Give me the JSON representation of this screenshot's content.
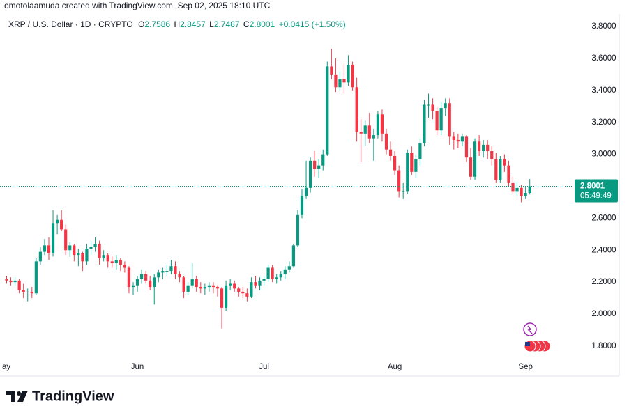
{
  "chart_data": {
    "type": "candlestick",
    "attribution": "omotolaamuda created with TradingView.com, Sep 02, 2025 18:10 UTC",
    "title": "XRP / U.S. Dollar · 1D · CRYPTO",
    "ohlc_labels": [
      "O",
      "H",
      "L",
      "C"
    ],
    "change_label": "+0.0415 (+1.50%)",
    "countdown": "05:49:49",
    "brand": "TradingView",
    "up_color": "#089981",
    "down_color": "#f23645",
    "grid": false,
    "ylim": [
      1.73,
      3.857
    ],
    "yticks": [
      {
        "value": 1.8,
        "label": "1.8000"
      },
      {
        "value": 2,
        "label": "2.0000"
      },
      {
        "value": 2.2,
        "label": "2.2000"
      },
      {
        "value": 2.4,
        "label": "2.4000"
      },
      {
        "value": 2.6,
        "label": "2.6000"
      },
      {
        "value": 2.8,
        "label": "2.8000"
      },
      {
        "value": 3,
        "label": "3.0000"
      },
      {
        "value": 3.2,
        "label": "3.2000"
      },
      {
        "value": 3.4,
        "label": "3.4000"
      },
      {
        "value": 3.6,
        "label": "3.6000"
      },
      {
        "value": 3.8,
        "label": "3.8000"
      }
    ],
    "categories": [
      "ay",
      null,
      null,
      null,
      null,
      null,
      null,
      null,
      null,
      null,
      null,
      null,
      null,
      null,
      null,
      null,
      null,
      null,
      null,
      null,
      null,
      null,
      null,
      null,
      null,
      null,
      null,
      null,
      null,
      null,
      null,
      "Jun",
      null,
      null,
      null,
      null,
      null,
      null,
      null,
      null,
      null,
      null,
      null,
      null,
      null,
      null,
      null,
      null,
      null,
      null,
      null,
      null,
      null,
      null,
      null,
      null,
      null,
      null,
      null,
      null,
      null,
      "Jul",
      null,
      null,
      null,
      null,
      null,
      null,
      null,
      null,
      null,
      null,
      null,
      null,
      null,
      null,
      null,
      null,
      null,
      null,
      null,
      null,
      null,
      null,
      null,
      null,
      null,
      null,
      null,
      null,
      null,
      null,
      "Aug",
      null,
      null,
      null,
      null,
      null,
      null,
      null,
      null,
      null,
      null,
      null,
      null,
      null,
      null,
      null,
      null,
      null,
      null,
      null,
      null,
      null,
      null,
      null,
      null,
      null,
      null,
      null,
      null,
      null,
      null,
      "Sep",
      null
    ],
    "ohlc": [
      [
        2.22,
        2.24,
        2.19,
        2.21
      ],
      [
        2.21,
        2.23,
        2.18,
        2.2
      ],
      [
        2.2,
        2.23,
        2.18,
        2.21
      ],
      [
        2.21,
        2.22,
        2.13,
        2.15
      ],
      [
        2.15,
        2.19,
        2.1,
        2.14
      ],
      [
        2.14,
        2.16,
        2.08,
        2.14
      ],
      [
        2.14,
        2.17,
        2.1,
        2.13
      ],
      [
        2.13,
        2.35,
        2.12,
        2.33
      ],
      [
        2.33,
        2.42,
        2.31,
        2.39
      ],
      [
        2.39,
        2.47,
        2.37,
        2.43
      ],
      [
        2.43,
        2.48,
        2.34,
        2.38
      ],
      [
        2.38,
        2.65,
        2.36,
        2.57
      ],
      [
        2.57,
        2.62,
        2.5,
        2.59
      ],
      [
        2.59,
        2.65,
        2.52,
        2.53
      ],
      [
        2.53,
        2.56,
        2.37,
        2.4
      ],
      [
        2.4,
        2.45,
        2.36,
        2.43
      ],
      [
        2.43,
        2.44,
        2.33,
        2.37
      ],
      [
        2.37,
        2.41,
        2.3,
        2.38
      ],
      [
        2.38,
        2.39,
        2.27,
        2.33
      ],
      [
        2.33,
        2.44,
        2.31,
        2.41
      ],
      [
        2.41,
        2.46,
        2.37,
        2.42
      ],
      [
        2.42,
        2.48,
        2.39,
        2.44
      ],
      [
        2.44,
        2.46,
        2.31,
        2.35
      ],
      [
        2.35,
        2.4,
        2.33,
        2.37
      ],
      [
        2.37,
        2.38,
        2.29,
        2.33
      ],
      [
        2.33,
        2.36,
        2.29,
        2.32
      ],
      [
        2.32,
        2.37,
        2.28,
        2.34
      ],
      [
        2.34,
        2.35,
        2.27,
        2.31
      ],
      [
        2.31,
        2.33,
        2.26,
        2.29
      ],
      [
        2.29,
        2.3,
        2.13,
        2.17
      ],
      [
        2.17,
        2.2,
        2.12,
        2.18
      ],
      [
        2.18,
        2.24,
        2.14,
        2.22
      ],
      [
        2.22,
        2.28,
        2.19,
        2.25
      ],
      [
        2.25,
        2.27,
        2.19,
        2.21
      ],
      [
        2.21,
        2.24,
        2.15,
        2.17
      ],
      [
        2.17,
        2.25,
        2.06,
        2.23
      ],
      [
        2.23,
        2.28,
        2.2,
        2.26
      ],
      [
        2.26,
        2.29,
        2.22,
        2.27
      ],
      [
        2.27,
        2.31,
        2.24,
        2.27
      ],
      [
        2.27,
        2.34,
        2.25,
        2.3
      ],
      [
        2.3,
        2.33,
        2.22,
        2.25
      ],
      [
        2.25,
        2.27,
        2.2,
        2.23
      ],
      [
        2.23,
        2.24,
        2.1,
        2.14
      ],
      [
        2.14,
        2.2,
        2.12,
        2.18
      ],
      [
        2.18,
        2.32,
        2.16,
        2.22
      ],
      [
        2.22,
        2.24,
        2.14,
        2.17
      ],
      [
        2.17,
        2.2,
        2.13,
        2.16
      ],
      [
        2.16,
        2.19,
        2.12,
        2.17
      ],
      [
        2.17,
        2.2,
        2.14,
        2.18
      ],
      [
        2.18,
        2.2,
        2.13,
        2.17
      ],
      [
        2.17,
        2.18,
        2.11,
        2.16
      ],
      [
        2.16,
        2.17,
        1.91,
        2.04
      ],
      [
        2.04,
        2.21,
        2.02,
        2.18
      ],
      [
        2.18,
        2.22,
        2.15,
        2.19
      ],
      [
        2.19,
        2.21,
        2.14,
        2.16
      ],
      [
        2.16,
        2.17,
        2.11,
        2.14
      ],
      [
        2.14,
        2.17,
        2.1,
        2.13
      ],
      [
        2.13,
        2.16,
        2.08,
        2.11
      ],
      [
        2.11,
        2.23,
        2.1,
        2.2
      ],
      [
        2.2,
        2.24,
        2.16,
        2.18
      ],
      [
        2.18,
        2.23,
        2.15,
        2.21
      ],
      [
        2.21,
        2.24,
        2.18,
        2.22
      ],
      [
        2.22,
        2.31,
        2.2,
        2.29
      ],
      [
        2.29,
        2.31,
        2.2,
        2.22
      ],
      [
        2.22,
        2.25,
        2.19,
        2.23
      ],
      [
        2.23,
        2.27,
        2.21,
        2.25
      ],
      [
        2.25,
        2.3,
        2.22,
        2.28
      ],
      [
        2.28,
        2.33,
        2.26,
        2.3
      ],
      [
        2.3,
        2.44,
        2.29,
        2.43
      ],
      [
        2.43,
        2.65,
        2.42,
        2.62
      ],
      [
        2.62,
        2.78,
        2.6,
        2.74
      ],
      [
        2.74,
        2.96,
        2.72,
        2.79
      ],
      [
        2.79,
        2.98,
        2.76,
        2.96
      ],
      [
        2.96,
        3.02,
        2.86,
        2.91
      ],
      [
        2.91,
        2.97,
        2.85,
        2.93
      ],
      [
        2.93,
        3.03,
        2.9,
        3.0
      ],
      [
        3.0,
        3.58,
        2.99,
        3.55
      ],
      [
        3.55,
        3.66,
        3.47,
        3.5
      ],
      [
        3.5,
        3.6,
        3.39,
        3.42
      ],
      [
        3.42,
        3.52,
        3.4,
        3.47
      ],
      [
        3.47,
        3.56,
        3.38,
        3.45
      ],
      [
        3.45,
        3.62,
        3.43,
        3.56
      ],
      [
        3.56,
        3.58,
        3.4,
        3.42
      ],
      [
        3.42,
        3.48,
        3.08,
        3.14
      ],
      [
        3.14,
        3.22,
        2.95,
        3.13
      ],
      [
        3.13,
        3.21,
        3.05,
        3.18
      ],
      [
        3.18,
        3.26,
        3.07,
        3.1
      ],
      [
        3.1,
        3.16,
        2.96,
        3.12
      ],
      [
        3.12,
        3.27,
        3.1,
        3.25
      ],
      [
        3.25,
        3.28,
        3.08,
        3.13
      ],
      [
        3.13,
        3.16,
        3.0,
        3.03
      ],
      [
        3.03,
        3.08,
        2.96,
        2.99
      ],
      [
        2.99,
        3.02,
        2.87,
        2.9
      ],
      [
        2.9,
        2.93,
        2.73,
        2.77
      ],
      [
        2.77,
        2.82,
        2.72,
        2.77
      ],
      [
        2.77,
        3.03,
        2.75,
        3.01
      ],
      [
        3.01,
        3.05,
        2.87,
        2.89
      ],
      [
        2.89,
        3.0,
        2.85,
        2.97
      ],
      [
        2.97,
        3.1,
        2.93,
        3.07
      ],
      [
        3.07,
        3.34,
        3.05,
        3.31
      ],
      [
        3.31,
        3.38,
        3.23,
        3.31
      ],
      [
        3.31,
        3.35,
        3.22,
        3.27
      ],
      [
        3.27,
        3.3,
        3.12,
        3.15
      ],
      [
        3.15,
        3.33,
        3.12,
        3.29
      ],
      [
        3.29,
        3.35,
        3.24,
        3.32
      ],
      [
        3.32,
        3.35,
        3.06,
        3.11
      ],
      [
        3.11,
        3.14,
        3.03,
        3.09
      ],
      [
        3.09,
        3.13,
        3.04,
        3.08
      ],
      [
        3.08,
        3.13,
        3.05,
        3.11
      ],
      [
        3.11,
        3.12,
        2.95,
        2.98
      ],
      [
        2.98,
        3.04,
        2.84,
        2.86
      ],
      [
        2.86,
        3.1,
        2.84,
        3.08
      ],
      [
        3.08,
        3.12,
        2.99,
        3.02
      ],
      [
        3.02,
        3.09,
        2.98,
        3.06
      ],
      [
        3.06,
        3.09,
        2.97,
        3.02
      ],
      [
        3.02,
        3.05,
        2.93,
        2.97
      ],
      [
        2.97,
        3.01,
        2.82,
        2.84
      ],
      [
        2.84,
        2.99,
        2.82,
        2.97
      ],
      [
        2.97,
        3.0,
        2.89,
        2.93
      ],
      [
        2.93,
        2.96,
        2.8,
        2.82
      ],
      [
        2.82,
        2.86,
        2.75,
        2.77
      ],
      [
        2.77,
        2.83,
        2.74,
        2.79
      ],
      [
        2.79,
        2.81,
        2.7,
        2.74
      ],
      [
        2.74,
        2.8,
        2.72,
        2.7586
      ],
      [
        2.7586,
        2.8457,
        2.7487,
        2.8001
      ]
    ]
  }
}
